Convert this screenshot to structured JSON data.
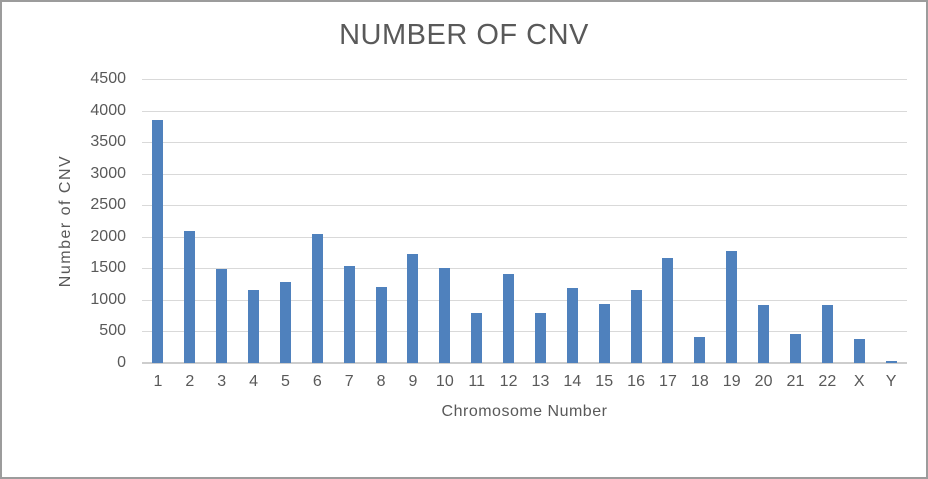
{
  "chart_data": {
    "type": "bar",
    "title": "NUMBER OF CNV",
    "xlabel": "Chromosome Number",
    "ylabel": "Number of CNV",
    "categories": [
      "1",
      "2",
      "3",
      "4",
      "5",
      "6",
      "7",
      "8",
      "9",
      "10",
      "11",
      "12",
      "13",
      "14",
      "15",
      "16",
      "17",
      "18",
      "19",
      "20",
      "21",
      "22",
      "X",
      "Y"
    ],
    "values": [
      3850,
      2090,
      1490,
      1150,
      1280,
      2040,
      1530,
      1200,
      1730,
      1510,
      790,
      1410,
      800,
      1190,
      940,
      1150,
      1660,
      420,
      1770,
      920,
      460,
      920,
      380,
      30
    ],
    "ylim": [
      0,
      4500
    ],
    "ytick_step": 500,
    "ytick_labels": [
      "0",
      "500",
      "1000",
      "1500",
      "2000",
      "2500",
      "3000",
      "3500",
      "4000",
      "4500"
    ],
    "grid": "horizontal",
    "legend": "none",
    "colors": {
      "bar": "#4F81BD",
      "gridline": "#D9D9D9",
      "zero_line": "#CDCDCD",
      "text": "#595959",
      "frame_border": "#9C9C9C"
    }
  }
}
